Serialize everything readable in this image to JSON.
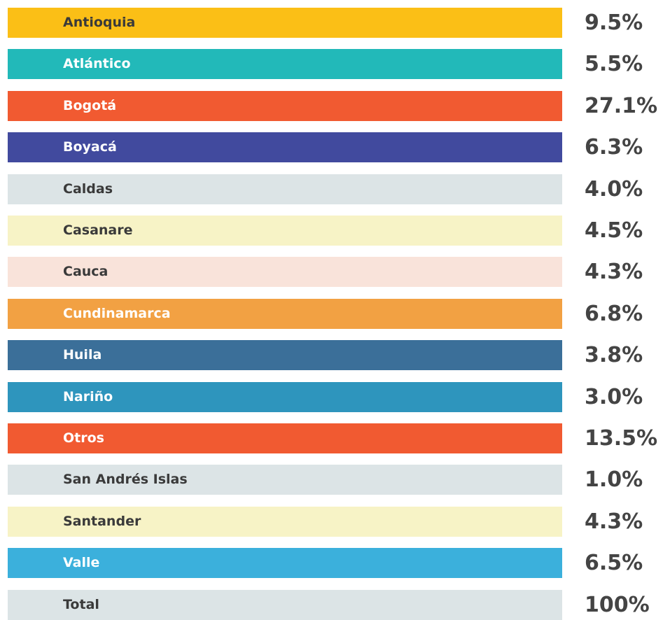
{
  "table": {
    "rows": [
      {
        "label": "Antioquia",
        "value": "9.5%",
        "color": "#fbbf16",
        "text_color": "#3a3a3a"
      },
      {
        "label": "Atlántico",
        "value": "5.5%",
        "color": "#22b9b9",
        "text_color": "#ffffff"
      },
      {
        "label": "Bogotá",
        "value": "27.1%",
        "color": "#f15a31",
        "text_color": "#ffffff"
      },
      {
        "label": "Boyacá",
        "value": "6.3%",
        "color": "#414a9e",
        "text_color": "#ffffff"
      },
      {
        "label": "Caldas",
        "value": "4.0%",
        "color": "#dce4e6",
        "text_color": "#3a3a3a"
      },
      {
        "label": "Casanare",
        "value": "4.5%",
        "color": "#f7f3c6",
        "text_color": "#3a3a3a"
      },
      {
        "label": "Cauca",
        "value": "4.3%",
        "color": "#f9e3da",
        "text_color": "#3a3a3a"
      },
      {
        "label": "Cundinamarca",
        "value": "6.8%",
        "color": "#f2a143",
        "text_color": "#ffffff"
      },
      {
        "label": "Huila",
        "value": "3.8%",
        "color": "#3b6f99",
        "text_color": "#ffffff"
      },
      {
        "label": "Nariño",
        "value": "3.0%",
        "color": "#2e95bd",
        "text_color": "#ffffff"
      },
      {
        "label": "Otros",
        "value": "13.5%",
        "color": "#f15a31",
        "text_color": "#ffffff"
      },
      {
        "label": "San Andrés Islas",
        "value": "1.0%",
        "color": "#dce4e6",
        "text_color": "#3a3a3a"
      },
      {
        "label": "Santander",
        "value": "4.3%",
        "color": "#f7f3c6",
        "text_color": "#3a3a3a"
      },
      {
        "label": "Valle",
        "value": "6.5%",
        "color": "#3bb0dc",
        "text_color": "#ffffff"
      },
      {
        "label": "Total",
        "value": "100%",
        "color": "#dce4e6",
        "text_color": "#3a3a3a"
      }
    ]
  }
}
